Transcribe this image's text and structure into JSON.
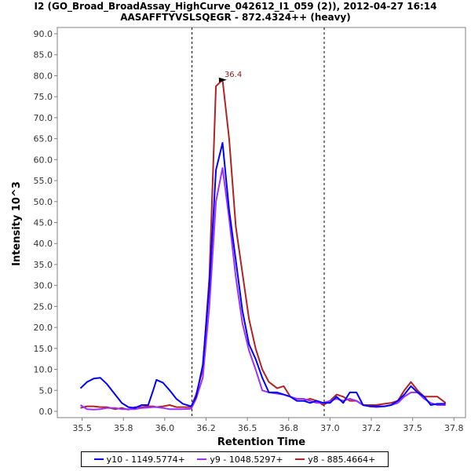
{
  "chart_data": {
    "type": "line",
    "title": "I2 (GO_Broad_BroadAssay_HighCurve_042612_I1_059 (2)), 2012-04-27 16:14",
    "subtitle": "AASAFFTYVSLSQEGR - 872.4324++ (heavy)",
    "xlabel": "Retention Time",
    "ylabel": "Intensity 10^3",
    "xlim": [
      35.35,
      37.82
    ],
    "ylim": [
      -1.5,
      91.5
    ],
    "xticks": [
      "35.5",
      "35.8",
      "36.0",
      "36.2",
      "36.5",
      "36.8",
      "37.0",
      "37.2",
      "37.5",
      "37.8"
    ],
    "xtick_values": [
      35.5,
      35.75,
      36.0,
      36.25,
      36.5,
      36.75,
      37.0,
      37.25,
      37.5,
      37.75
    ],
    "yticks": [
      "0.0",
      "5.0",
      "10.0",
      "15.0",
      "20.0",
      "25.0",
      "30.0",
      "35.0",
      "40.0",
      "45.0",
      "50.0",
      "55.0",
      "60.0",
      "65.0",
      "70.0",
      "75.0",
      "80.0",
      "85.0",
      "90.0"
    ],
    "ytick_values": [
      0,
      5,
      10,
      15,
      20,
      25,
      30,
      35,
      40,
      45,
      50,
      55,
      60,
      65,
      70,
      75,
      80,
      85,
      90
    ],
    "vlines": [
      36.165,
      36.965
    ],
    "annotation": {
      "label": "36.4",
      "x": 36.39,
      "y": 79.0,
      "color": "#8b1a1a"
    },
    "series": [
      {
        "name": "y10 - 1149.5774+",
        "color": "#0000ff",
        "x": [
          35.49,
          35.53,
          35.57,
          35.61,
          35.65,
          35.7,
          35.74,
          35.78,
          35.82,
          35.86,
          35.9,
          35.93,
          35.95,
          35.99,
          36.03,
          36.07,
          36.11,
          36.16,
          36.19,
          36.23,
          36.27,
          36.31,
          36.35,
          36.39,
          36.43,
          36.47,
          36.51,
          36.55,
          36.59,
          36.63,
          36.68,
          36.72,
          36.76,
          36.8,
          36.84,
          36.88,
          36.92,
          36.96,
          37.0,
          37.04,
          37.08,
          37.12,
          37.16,
          37.2,
          37.24,
          37.28,
          37.33,
          37.37,
          37.41,
          37.45,
          37.49,
          37.53,
          37.57,
          37.61,
          37.65,
          37.7
        ],
        "values": [
          5.5,
          7.0,
          7.8,
          8.0,
          6.5,
          4.0,
          2.0,
          1.0,
          0.8,
          1.5,
          1.5,
          5.0,
          7.5,
          6.8,
          5.0,
          3.0,
          1.8,
          1.2,
          3.5,
          11.0,
          30.0,
          57.5,
          64.0,
          48.0,
          36.0,
          24.0,
          16.0,
          12.5,
          8.0,
          4.5,
          4.5,
          4.0,
          3.5,
          2.5,
          2.5,
          2.0,
          2.5,
          2.0,
          2.0,
          3.5,
          2.0,
          4.5,
          4.5,
          1.5,
          1.2,
          1.2,
          1.2,
          1.5,
          2.5,
          4.0,
          6.0,
          4.5,
          3.5,
          1.5,
          1.8,
          1.8
        ]
      },
      {
        "name": "y9 - 1048.5297+",
        "color": "#9b30ff",
        "x": [
          35.49,
          35.53,
          35.57,
          35.61,
          35.65,
          35.7,
          35.74,
          35.78,
          35.82,
          35.86,
          35.9,
          35.93,
          35.95,
          35.99,
          36.03,
          36.07,
          36.11,
          36.16,
          36.19,
          36.23,
          36.27,
          36.31,
          36.35,
          36.39,
          36.43,
          36.47,
          36.51,
          36.55,
          36.59,
          36.63,
          36.68,
          36.72,
          36.76,
          36.8,
          36.84,
          36.88,
          36.92,
          36.96,
          37.0,
          37.04,
          37.08,
          37.12,
          37.16,
          37.2,
          37.24,
          37.28,
          37.33,
          37.37,
          37.41,
          37.45,
          37.49,
          37.53,
          37.57,
          37.61,
          37.65,
          37.7
        ],
        "values": [
          1.5,
          0.5,
          0.4,
          0.5,
          0.8,
          0.8,
          0.5,
          0.5,
          0.5,
          0.8,
          0.9,
          1.0,
          1.0,
          0.8,
          0.5,
          0.5,
          0.5,
          0.6,
          3.0,
          8.0,
          25.0,
          50.0,
          58.0,
          46.0,
          32.0,
          21.0,
          14.5,
          10.0,
          5.0,
          4.5,
          4.2,
          4.0,
          3.5,
          3.0,
          3.0,
          2.5,
          2.0,
          2.0,
          2.5,
          3.0,
          2.5,
          3.0,
          2.5,
          1.5,
          1.2,
          1.0,
          1.2,
          1.5,
          2.0,
          3.5,
          4.5,
          4.5,
          3.0,
          2.0,
          1.5,
          1.5
        ]
      },
      {
        "name": "y8 - 885.4664+",
        "color": "#b22222",
        "x": [
          35.49,
          35.53,
          35.57,
          35.61,
          35.65,
          35.7,
          35.74,
          35.78,
          35.82,
          35.86,
          35.9,
          35.93,
          35.95,
          35.99,
          36.03,
          36.07,
          36.11,
          36.16,
          36.19,
          36.23,
          36.27,
          36.31,
          36.35,
          36.39,
          36.43,
          36.47,
          36.51,
          36.55,
          36.59,
          36.63,
          36.68,
          36.72,
          36.76,
          36.8,
          36.84,
          36.88,
          36.92,
          36.96,
          37.0,
          37.04,
          37.08,
          37.12,
          37.16,
          37.2,
          37.24,
          37.28,
          37.33,
          37.37,
          37.41,
          37.45,
          37.49,
          37.53,
          37.57,
          37.61,
          37.65,
          37.7
        ],
        "values": [
          0.8,
          1.2,
          1.2,
          1.0,
          1.0,
          0.5,
          0.8,
          0.4,
          1.0,
          1.0,
          1.2,
          1.2,
          1.0,
          1.2,
          1.5,
          1.0,
          1.0,
          1.0,
          4.0,
          10.0,
          32.0,
          77.5,
          79.0,
          65.0,
          44.0,
          33.0,
          22.0,
          15.0,
          10.0,
          7.0,
          5.5,
          6.0,
          3.5,
          2.5,
          2.5,
          3.0,
          2.5,
          1.5,
          2.5,
          4.0,
          3.5,
          2.5,
          2.5,
          1.5,
          1.5,
          1.5,
          1.8,
          2.0,
          2.5,
          5.0,
          7.0,
          5.0,
          3.5,
          3.5,
          3.5,
          2.0
        ]
      }
    ]
  }
}
